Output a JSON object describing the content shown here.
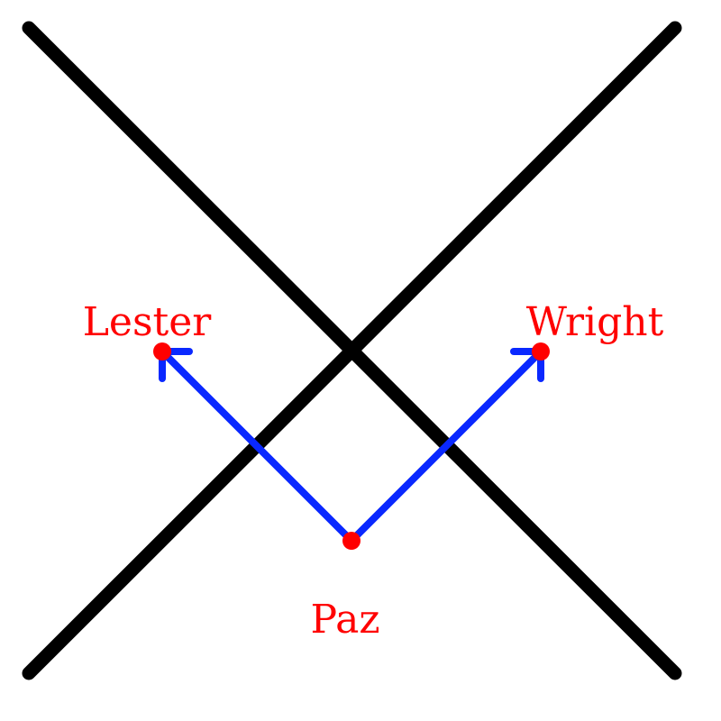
{
  "colors": {
    "background": "#ffffff",
    "lines": "#000000",
    "arrows": "#0a28ff",
    "points": "#ff0000",
    "labels": "#ff0000"
  },
  "labels": {
    "left": "Lester",
    "right": "Wright",
    "bottom": "Paz"
  }
}
